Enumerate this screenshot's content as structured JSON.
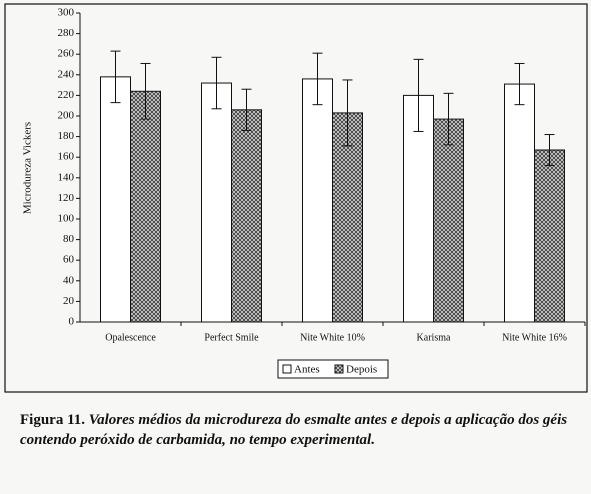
{
  "chart_data": {
    "type": "bar",
    "ylabel": "Microdureza Vickers",
    "categories": [
      "Opalescence",
      "Perfect Smile",
      "Nite White 10%",
      "Karisma",
      "Nite White 16%"
    ],
    "series": [
      {
        "name": "Antes",
        "color": "#ffffff",
        "values": [
          238,
          232,
          236,
          220,
          231
        ],
        "errors": [
          25,
          25,
          25,
          35,
          20
        ]
      },
      {
        "name": "Depois",
        "color": "hatch",
        "values": [
          224,
          206,
          203,
          197,
          167
        ],
        "errors": [
          27,
          20,
          32,
          25,
          15
        ]
      }
    ],
    "ylim": [
      0,
      300
    ],
    "yticks": [
      0,
      20,
      40,
      60,
      80,
      100,
      120,
      140,
      160,
      180,
      200,
      220,
      240,
      260,
      280,
      300
    ],
    "legend": "bottom"
  },
  "caption": {
    "label": "Figura 11.",
    "text": "Valores médios da microdureza do esmalte antes e depois a aplicação dos géis contendo peróxido de carbamida, no tempo experimental."
  }
}
